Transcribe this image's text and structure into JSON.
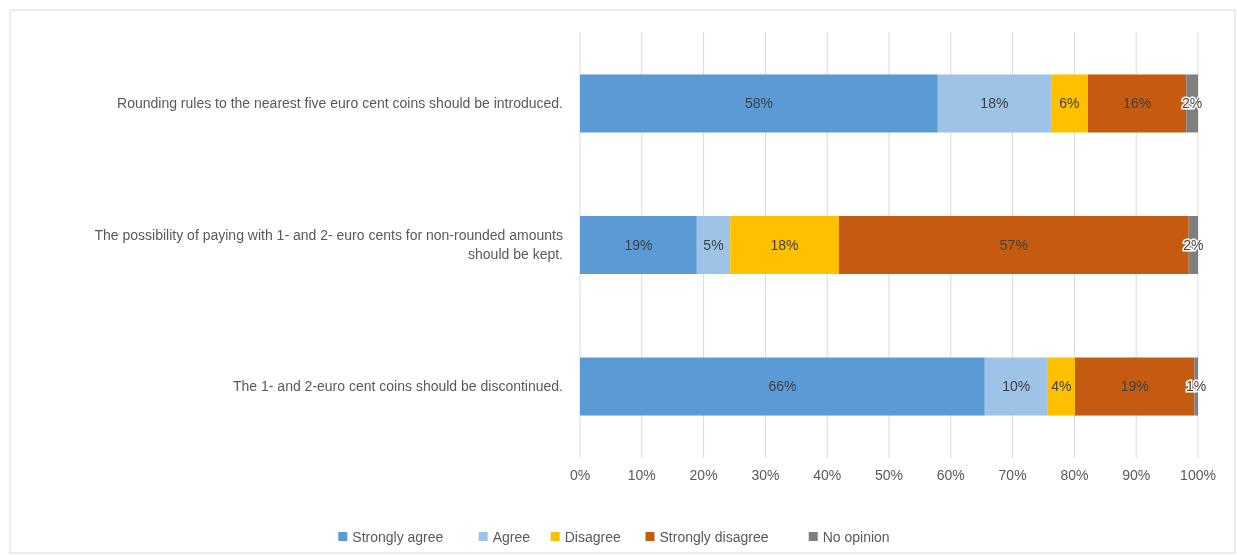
{
  "chart_data": {
    "type": "bar",
    "orientation": "horizontal",
    "stacked": true,
    "categories": [
      "Rounding rules to the nearest five euro cent coins should be introduced.",
      "The possibility of paying with 1- and 2- euro cents for non-rounded amounts should be kept.",
      "The 1- and 2-euro cent coins should be discontinued."
    ],
    "series": [
      {
        "name": "Strongly agree",
        "color": "#5b9bd5",
        "values": [
          57.9,
          18.9,
          65.5
        ],
        "value_labels": [
          "58%",
          "19%",
          "66%"
        ]
      },
      {
        "name": "Agree",
        "color": "#9dc3e6",
        "values": [
          18.3,
          5.4,
          10.2
        ],
        "value_labels": [
          "18%",
          "5%",
          "10%"
        ]
      },
      {
        "name": "Disagree",
        "color": "#ffc000",
        "values": [
          6.0,
          17.6,
          4.4
        ],
        "value_labels": [
          "6%",
          "18%",
          "4%"
        ]
      },
      {
        "name": "Strongly disagree",
        "color": "#c55a11",
        "values": [
          15.9,
          56.6,
          19.3
        ],
        "value_labels": [
          "16%",
          "57%",
          "19%"
        ]
      },
      {
        "name": "No opinion",
        "color": "#7f7f7f",
        "values": [
          1.9,
          1.5,
          0.6
        ],
        "value_labels": [
          "2%",
          "2%",
          "1%"
        ]
      }
    ],
    "xlim": [
      0,
      100
    ],
    "xticks": [
      {
        "value": 0,
        "label": "0%"
      },
      {
        "value": 10,
        "label": "10%"
      },
      {
        "value": 20,
        "label": "20%"
      },
      {
        "value": 30,
        "label": "30%"
      },
      {
        "value": 40,
        "label": "40%"
      },
      {
        "value": 50,
        "label": "50%"
      },
      {
        "value": 60,
        "label": "60%"
      },
      {
        "value": 70,
        "label": "70%"
      },
      {
        "value": 80,
        "label": "80%"
      },
      {
        "value": 90,
        "label": "90%"
      },
      {
        "value": 100,
        "label": "100%"
      }
    ],
    "grid": "x",
    "legend": "bottom"
  }
}
